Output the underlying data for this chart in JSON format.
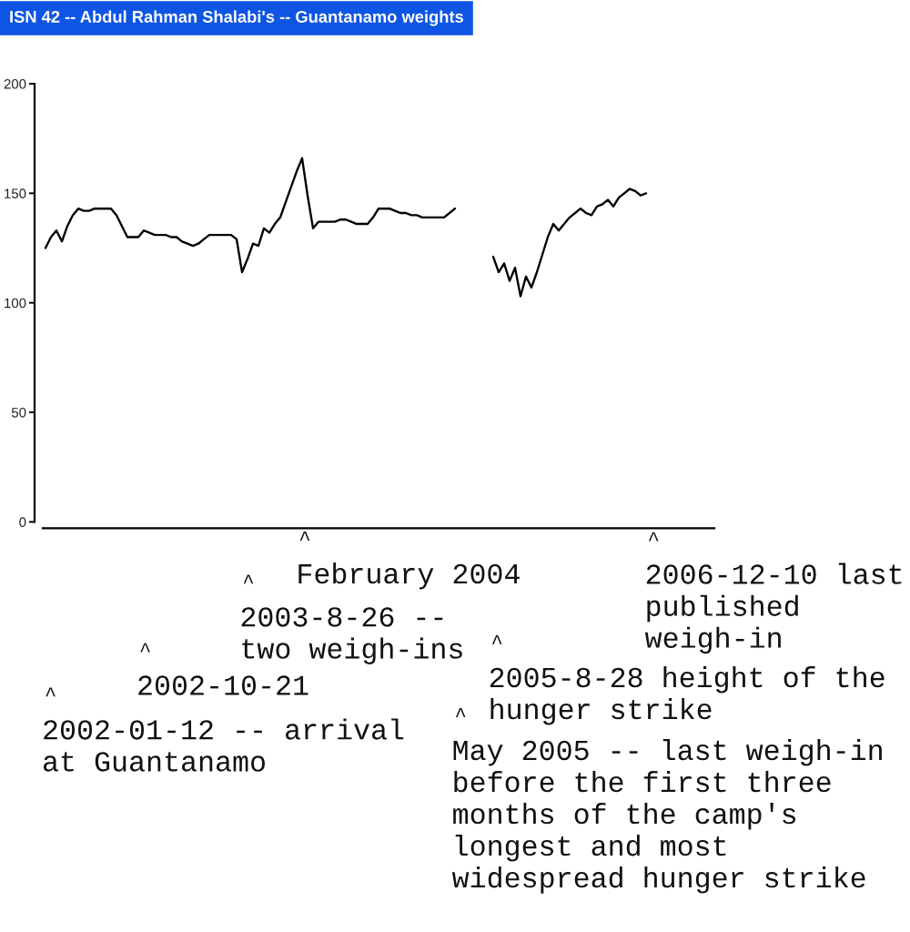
{
  "chart_data": {
    "type": "line",
    "title": "ISN 42 -- Abdul Rahman Shalabi's -- Guantanamo weights",
    "categories": [
      null,
      null,
      null,
      null,
      null,
      null,
      null,
      null,
      null,
      null,
      null,
      null,
      null,
      null,
      null,
      null,
      null,
      null,
      null,
      null,
      null,
      null,
      null,
      null,
      null,
      null,
      null,
      null,
      null,
      null,
      null,
      null,
      null,
      null,
      null,
      null,
      null,
      null,
      null,
      null,
      null,
      null,
      null,
      null,
      null,
      null,
      null,
      null,
      null,
      null,
      null,
      null,
      null,
      null,
      null,
      null,
      null,
      null,
      null,
      null,
      null,
      null,
      null,
      null,
      null,
      null,
      null,
      null,
      null,
      null,
      null,
      null,
      null,
      null,
      null,
      null,
      null,
      null,
      null,
      null,
      null,
      null,
      null,
      null,
      null,
      null,
      null,
      null,
      null,
      null,
      null,
      null,
      null,
      null,
      null,
      null,
      null,
      null,
      null,
      null,
      null,
      null,
      null,
      null,
      null,
      null,
      null,
      null,
      null,
      null,
      null,
      null,
      null,
      null,
      null,
      null,
      null,
      null,
      null,
      null,
      null,
      null,
      null
    ],
    "series": [
      {
        "color": "#000000",
        "values": [
          125,
          130,
          133,
          128,
          135,
          140,
          143,
          142,
          142,
          143,
          143,
          143,
          143,
          140,
          135,
          130,
          130,
          130,
          133,
          132,
          131,
          131,
          131,
          130,
          130,
          128,
          127,
          126,
          127,
          129,
          131,
          131,
          131,
          131,
          131,
          129,
          114,
          120,
          127,
          126,
          134,
          132,
          136,
          139,
          146,
          153,
          160,
          166,
          149,
          134,
          137,
          137,
          137,
          137,
          138,
          138,
          137,
          136,
          136,
          136,
          139,
          143,
          143,
          143,
          142,
          141,
          141,
          140,
          140,
          139,
          139,
          139,
          139,
          139,
          141,
          143,
          null,
          null,
          null,
          null,
          null,
          null,
          null,
          null,
          null,
          null,
          null,
          null,
          null,
          null,
          null,
          null,
          null,
          null,
          null,
          null,
          null,
          null,
          null,
          null,
          null,
          null,
          null,
          null,
          null,
          null,
          null,
          null,
          null,
          null,
          null,
          null,
          null,
          null,
          null,
          null,
          null,
          null,
          null,
          null,
          null,
          null,
          null
        ]
      },
      {
        "color": "#000000",
        "values": [
          null,
          null,
          null,
          null,
          null,
          null,
          null,
          null,
          null,
          null,
          null,
          null,
          null,
          null,
          null,
          null,
          null,
          null,
          null,
          null,
          null,
          null,
          null,
          null,
          null,
          null,
          null,
          null,
          null,
          null,
          null,
          null,
          null,
          null,
          null,
          null,
          null,
          null,
          null,
          null,
          null,
          null,
          null,
          null,
          null,
          null,
          null,
          null,
          null,
          null,
          null,
          null,
          null,
          null,
          null,
          null,
          null,
          null,
          null,
          null,
          null,
          null,
          null,
          null,
          null,
          null,
          null,
          null,
          null,
          null,
          null,
          null,
          null,
          null,
          null,
          null,
          null,
          null,
          null,
          null,
          null,
          null,
          121,
          114,
          118,
          110,
          116,
          103,
          112,
          107,
          114,
          122,
          130,
          136,
          133,
          136,
          139,
          141,
          143,
          141,
          140,
          144,
          145,
          147,
          144,
          148,
          150,
          152,
          151,
          149,
          150,
          null,
          null,
          null,
          null,
          null,
          null,
          null,
          null,
          null,
          null,
          null,
          null
        ]
      }
    ],
    "ylim": [
      0,
      200
    ],
    "yticks": [
      0,
      50,
      100,
      150,
      200
    ],
    "tick_labels": "y",
    "annotations": [
      "^",
      "2002-01-12 -- arrival\nat Guantanamo",
      "^",
      "2002-10-21",
      "^",
      "2003-8-26 --\ntwo weigh-ins",
      "^",
      "February 2004",
      "^",
      "May 2005 -- last weigh-in\nbefore the first three\nmonths of the camp's\nlongest and most\nwidespread hunger strike",
      "^",
      "2005-8-28 height of the\nhunger strike",
      "^",
      "2006-12-10 last\npublished\nweigh-in"
    ]
  }
}
